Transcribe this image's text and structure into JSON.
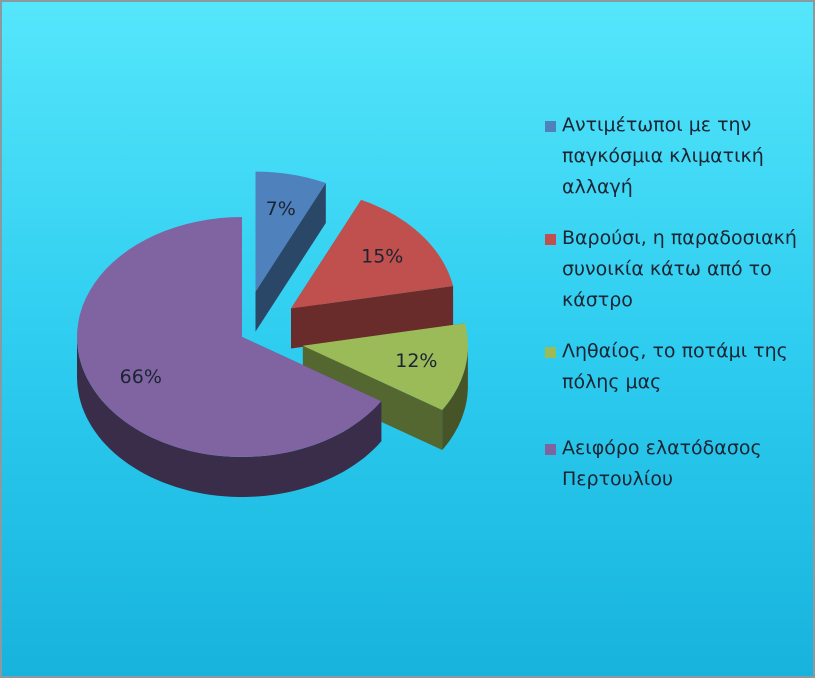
{
  "chart_data": {
    "type": "pie",
    "categories": [
      "Αντιμέτωποι με την παγκόσμια κλιματική αλλαγή",
      "Βαρούσι, η παραδοσιακή συνοικία κάτω από το κάστρο",
      "Ληθαίος, το ποτάμι της πόλης μας",
      "Αειφόρο ελατόδασος Περτουλίου"
    ],
    "values": [
      7,
      15,
      12,
      66
    ],
    "value_labels": [
      "7%",
      "15%",
      "12%",
      "66%"
    ],
    "colors": [
      "#4f81bd",
      "#c0504d",
      "#9bbb59",
      "#8064a2"
    ],
    "legend": "right"
  }
}
